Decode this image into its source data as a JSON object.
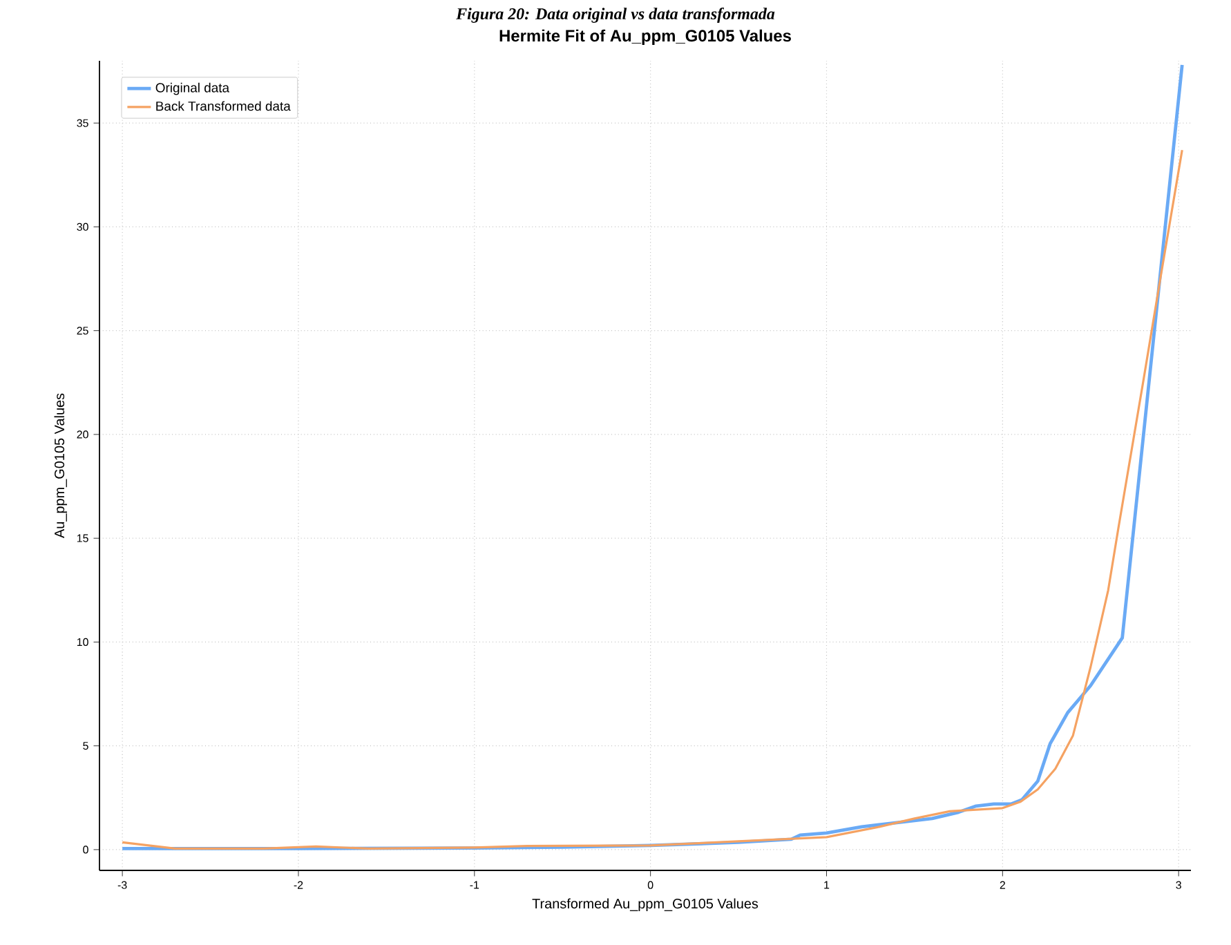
{
  "chart_data": {
    "type": "line",
    "title": "Hermite Fit of Au_ppm_G0105 Values",
    "xlabel": "Transformed Au_ppm_G0105 Values",
    "ylabel": "Au_ppm_G0105 Values",
    "annotations": [
      "Figura 20: Data original vs data transformada"
    ],
    "series": [
      {
        "name": "Original data",
        "color": "#6aaaf5",
        "x": [
          -3,
          -2.7,
          -2,
          -1,
          -0.5,
          0,
          0.5,
          0.8,
          0.85,
          1.0,
          1.2,
          1.4,
          1.6,
          1.75,
          1.85,
          1.95,
          2.05,
          2.11,
          2.2,
          2.27,
          2.37,
          2.5,
          2.68,
          3.02
        ],
        "values": [
          0.05,
          0.05,
          0.05,
          0.08,
          0.12,
          0.2,
          0.35,
          0.5,
          0.7,
          0.8,
          1.1,
          1.3,
          1.5,
          1.8,
          2.1,
          2.2,
          2.2,
          2.4,
          3.3,
          5.1,
          6.6,
          7.9,
          10.2,
          37.8
        ]
      },
      {
        "name": "Back Transformed data",
        "color": "#f5a262",
        "x": [
          -3,
          -2.7,
          -2.2,
          -1.9,
          -1.6,
          -1,
          -0.7,
          0,
          0.5,
          1.0,
          1.3,
          1.5,
          1.7,
          1.8,
          2.0,
          2.1,
          2.2,
          2.3,
          2.4,
          2.5,
          2.6,
          2.66,
          2.8,
          2.9,
          3.02
        ],
        "values": [
          0.35,
          0.05,
          0.05,
          0.15,
          0.05,
          0.1,
          0.18,
          0.2,
          0.4,
          0.6,
          1.1,
          1.5,
          1.85,
          1.9,
          2.0,
          2.3,
          2.9,
          3.9,
          5.5,
          8.8,
          12.5,
          15.6,
          22.6,
          27.7,
          33.7
        ]
      }
    ],
    "xlim": [
      -3.13,
      3.07
    ],
    "ylim": [
      -1,
      38
    ],
    "xticks": [
      -3,
      -2,
      -1,
      0,
      1,
      2,
      3
    ],
    "yticks": [
      0,
      5,
      10,
      15,
      20,
      25,
      30,
      35
    ],
    "grid": true,
    "legend": "top left",
    "line_style": "solid"
  }
}
